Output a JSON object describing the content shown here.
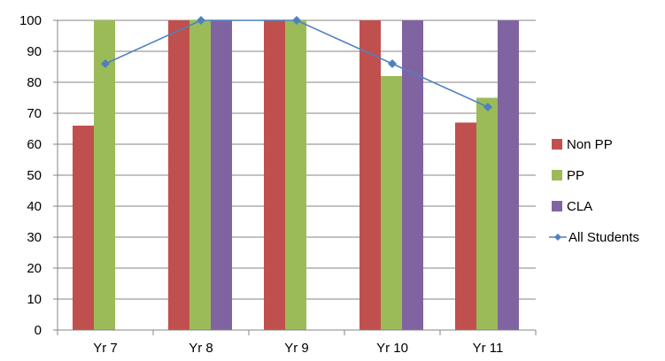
{
  "chart_data": {
    "type": "bar",
    "title": "",
    "xlabel": "",
    "ylabel": "",
    "categories": [
      "Yr 7",
      "Yr 8",
      "Yr 9",
      "Yr 10",
      "Yr 11"
    ],
    "ylim": [
      0,
      100
    ],
    "yticks": [
      0,
      10,
      20,
      30,
      40,
      50,
      60,
      70,
      80,
      90,
      100
    ],
    "grid": true,
    "legend_position": "right",
    "series": [
      {
        "name": "Non PP",
        "kind": "bar",
        "color": "#C0504D",
        "values": [
          66,
          100,
          100,
          100,
          67
        ]
      },
      {
        "name": "PP",
        "kind": "bar",
        "color": "#9BBB59",
        "values": [
          100,
          100,
          100,
          82,
          75
        ]
      },
      {
        "name": "CLA",
        "kind": "bar",
        "color": "#8064A2",
        "values": [
          null,
          100,
          null,
          100,
          100
        ]
      },
      {
        "name": "All Students",
        "kind": "line",
        "color": "#4F81BD",
        "values": [
          86,
          100,
          100,
          86,
          72
        ]
      }
    ]
  }
}
